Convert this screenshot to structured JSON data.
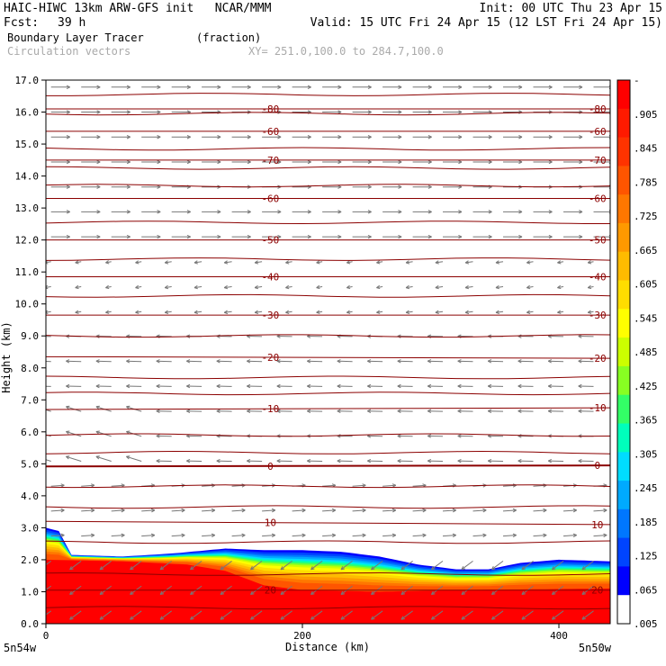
{
  "header": {
    "title_left": "HAIC-HIWC 13km ARW-GFS init   NCAR/MMM",
    "init": "Init: 00 UTC Thu 23 Apr 15",
    "fcst_label": "Fcst:",
    "fcst_value": "39 h",
    "valid": "Valid: 15 UTC Fri 24 Apr 15 (12 LST Fri 24 Apr 15)",
    "field_name": "Boundary Layer Tracer",
    "field_units": "(fraction)",
    "vectors_label": "Circulation vectors",
    "cross_section": "XY= 251.0,100.0 to 284.7,100.0"
  },
  "chart_data": {
    "type": "heatmap",
    "xlabel": "Distance (km)",
    "ylabel": "Height (km)",
    "xlim": [
      0,
      440
    ],
    "ylim": [
      0,
      17
    ],
    "x_ticks": [
      0,
      200,
      400
    ],
    "y_ticks": [
      "0.0",
      "1.0",
      "2.0",
      "3.0",
      "4.0",
      "5.0",
      "6.0",
      "7.0",
      "8.0",
      "9.0",
      "10.0",
      "11.0",
      "12.0",
      "13.0",
      "14.0",
      "15.0",
      "16.0",
      "17.0"
    ],
    "x_end_labels": {
      "left": "5n54w",
      "right": "5n50w"
    },
    "colorbar": {
      "labels": [
        "-",
        ".905",
        ".845",
        ".785",
        ".725",
        ".665",
        ".605",
        ".545",
        ".485",
        ".425",
        ".365",
        ".305",
        ".245",
        ".185",
        ".125",
        ".065",
        ".005"
      ],
      "colors": [
        "#ff0000",
        "#ff1a00",
        "#ff3300",
        "#ff5500",
        "#ff7700",
        "#ff9900",
        "#ffbb00",
        "#ffdd00",
        "#ffff00",
        "#ccff00",
        "#88ff22",
        "#33ff66",
        "#00ffbb",
        "#00ddff",
        "#00aaff",
        "#0077ff",
        "#0044ff",
        "#0000ff",
        "#ffffff"
      ]
    },
    "tracer_top_km": [
      [
        0,
        3.0
      ],
      [
        10,
        2.9
      ],
      [
        20,
        2.15
      ],
      [
        60,
        2.1
      ],
      [
        100,
        2.2
      ],
      [
        140,
        2.35
      ],
      [
        170,
        2.3
      ],
      [
        200,
        2.3
      ],
      [
        230,
        2.25
      ],
      [
        260,
        2.1
      ],
      [
        290,
        1.85
      ],
      [
        320,
        1.7
      ],
      [
        345,
        1.7
      ],
      [
        370,
        1.9
      ],
      [
        400,
        2.0
      ],
      [
        440,
        1.95
      ]
    ],
    "tracer_core_top_km": [
      [
        0,
        2.0
      ],
      [
        60,
        1.95
      ],
      [
        110,
        1.85
      ],
      [
        140,
        1.65
      ],
      [
        170,
        1.2
      ],
      [
        200,
        1.05
      ],
      [
        260,
        1.0
      ],
      [
        320,
        1.05
      ],
      [
        440,
        1.1
      ]
    ],
    "temperature_contours_c": [
      {
        "label": "20",
        "y_km": [
          1.05,
          1.05
        ]
      },
      {
        "label": "10",
        "y_km": [
          3.2,
          3.1
        ]
      },
      {
        "label": "0",
        "y_km": [
          4.92,
          4.95
        ]
      },
      {
        "label": "-10",
        "y_km": [
          6.7,
          6.75
        ]
      },
      {
        "label": "-20",
        "y_km": [
          8.35,
          8.3
        ]
      },
      {
        "label": "-30",
        "y_km": [
          9.65,
          9.65
        ]
      },
      {
        "label": "-40",
        "y_km": [
          10.85,
          10.85
        ]
      },
      {
        "label": "-50",
        "y_km": [
          12.0,
          12.0
        ]
      },
      {
        "label": "-60",
        "y_km": [
          13.3,
          13.3
        ]
      },
      {
        "label": "-70",
        "y_km": [
          14.5,
          14.5
        ]
      },
      {
        "label": "-60",
        "y_km": [
          15.4,
          15.4
        ]
      },
      {
        "label": "-80",
        "y_km": [
          16.1,
          16.1
        ]
      }
    ],
    "theta_contours_km": [
      0.5,
      1.55,
      2.55,
      3.65,
      4.3,
      5.35,
      5.9,
      7.2,
      7.7,
      9.0,
      10.25,
      11.4,
      12.55,
      13.7,
      14.25,
      14.85,
      15.95,
      16.55
    ]
  }
}
